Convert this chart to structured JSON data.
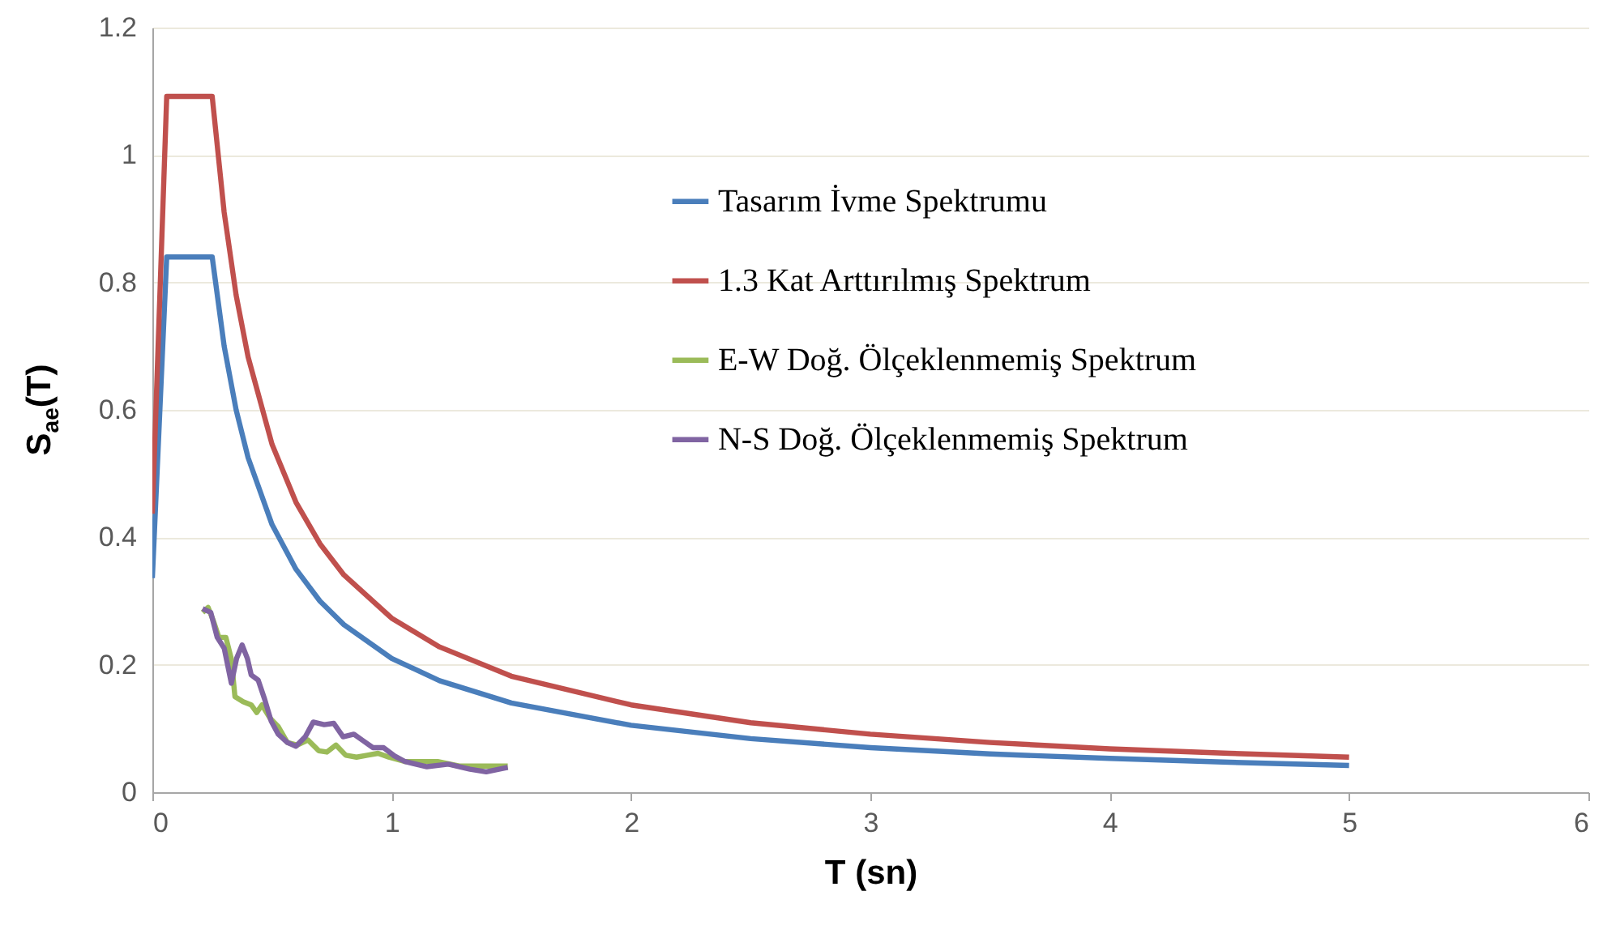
{
  "chart_data": {
    "type": "line",
    "xlabel": "T (sn)",
    "ylabel": "S$_{ae}$(T)",
    "xlim": [
      0,
      6
    ],
    "xticks": [
      0,
      1,
      2,
      3,
      4,
      5,
      6
    ],
    "ylim": [
      0,
      1.2
    ],
    "yticks": [
      0,
      0.2,
      0.4,
      0.6,
      0.8,
      1,
      1.2
    ],
    "grid": "y",
    "legend": "right",
    "series": [
      {
        "name": "Tasarım İvme Spektrumu",
        "color": "#4a7ebb",
        "x": [
          0,
          0.06,
          0.25,
          0.3,
          0.35,
          0.4,
          0.5,
          0.6,
          0.7,
          0.8,
          1,
          1.2,
          1.5,
          2,
          2.5,
          3,
          3.5,
          4,
          4.5,
          5
        ],
        "values": [
          0.336,
          0.84,
          0.84,
          0.7,
          0.6,
          0.525,
          0.42,
          0.35,
          0.3,
          0.263,
          0.21,
          0.175,
          0.14,
          0.105,
          0.084,
          0.07,
          0.06,
          0.053,
          0.047,
          0.042
        ]
      },
      {
        "name": "1.3 Kat Arttırılmış Spektrum",
        "color": "#c0504d",
        "x": [
          0,
          0.06,
          0.25,
          0.3,
          0.35,
          0.4,
          0.5,
          0.6,
          0.7,
          0.8,
          1,
          1.2,
          1.5,
          2,
          2.5,
          3,
          3.5,
          4,
          4.5,
          5
        ],
        "values": [
          0.437,
          1.092,
          1.092,
          0.91,
          0.78,
          0.683,
          0.546,
          0.455,
          0.39,
          0.341,
          0.273,
          0.228,
          0.182,
          0.137,
          0.109,
          0.091,
          0.078,
          0.068,
          0.061,
          0.055
        ]
      },
      {
        "name": "E-W Doğ. Ölçeklenmemiş Spektrum",
        "color": "#9bbb59",
        "x": [
          0.21,
          0.233,
          0.255,
          0.278,
          0.307,
          0.33,
          0.345,
          0.379,
          0.413,
          0.436,
          0.458,
          0.492,
          0.526,
          0.564,
          0.605,
          0.65,
          0.695,
          0.729,
          0.767,
          0.808,
          0.853,
          0.898,
          0.943,
          0.988,
          1.056,
          1.192,
          1.282,
          1.372,
          1.485
        ],
        "values": [
          0.282,
          0.29,
          0.269,
          0.243,
          0.243,
          0.209,
          0.15,
          0.142,
          0.137,
          0.125,
          0.137,
          0.116,
          0.103,
          0.078,
          0.074,
          0.082,
          0.065,
          0.063,
          0.074,
          0.058,
          0.055,
          0.058,
          0.061,
          0.055,
          0.048,
          0.048,
          0.041,
          0.041,
          0.041
        ]
      },
      {
        "name": "N-S Doğ. Ölçeklenmemiş Spektrum",
        "color": "#8064a2",
        "x": [
          0.21,
          0.244,
          0.271,
          0.3,
          0.33,
          0.352,
          0.375,
          0.397,
          0.413,
          0.442,
          0.469,
          0.496,
          0.526,
          0.564,
          0.6,
          0.639,
          0.672,
          0.718,
          0.758,
          0.797,
          0.842,
          0.876,
          0.921,
          0.966,
          1.011,
          1.056,
          1.147,
          1.237,
          1.327,
          1.395,
          1.485
        ],
        "values": [
          0.288,
          0.282,
          0.243,
          0.226,
          0.171,
          0.21,
          0.231,
          0.21,
          0.184,
          0.176,
          0.146,
          0.112,
          0.091,
          0.078,
          0.072,
          0.087,
          0.11,
          0.106,
          0.108,
          0.087,
          0.091,
          0.082,
          0.07,
          0.07,
          0.057,
          0.048,
          0.04,
          0.044,
          0.036,
          0.032,
          0.039
        ]
      }
    ]
  }
}
